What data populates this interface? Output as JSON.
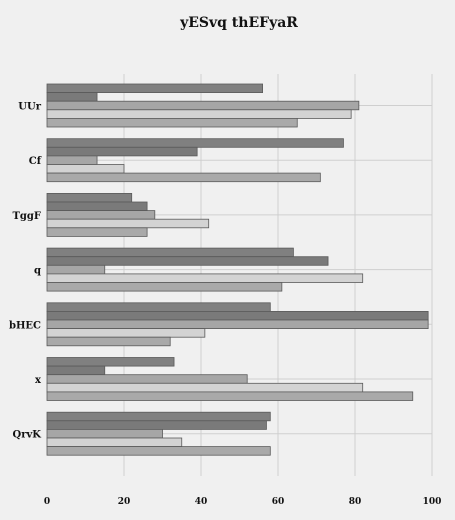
{
  "chart_data": {
    "type": "bar",
    "orientation": "horizontal",
    "title": "yESvq thEFyaR",
    "xlabel": "",
    "ylabel": "",
    "xlim": [
      0,
      100
    ],
    "x_ticks": [
      "0",
      "20",
      "40",
      "60",
      "80",
      "100"
    ],
    "grid": true,
    "categories": [
      "UUr",
      "Cf",
      "TggF",
      "q",
      "bHEC",
      "x",
      "QrvK"
    ],
    "series": [
      {
        "color": "#808080",
        "values": [
          56,
          77,
          22,
          64,
          58,
          33,
          58
        ]
      },
      {
        "color": "#7a7a7a",
        "values": [
          13,
          39,
          26,
          73,
          99,
          15,
          57
        ]
      },
      {
        "color": "#a6a6a6",
        "values": [
          81,
          13,
          28,
          15,
          99,
          52,
          30
        ]
      },
      {
        "color": "#d3d3d3",
        "values": [
          79,
          20,
          42,
          82,
          41,
          82,
          35
        ]
      },
      {
        "color": "#a9a9a9",
        "values": [
          65,
          71,
          26,
          61,
          32,
          95,
          58
        ]
      }
    ]
  }
}
